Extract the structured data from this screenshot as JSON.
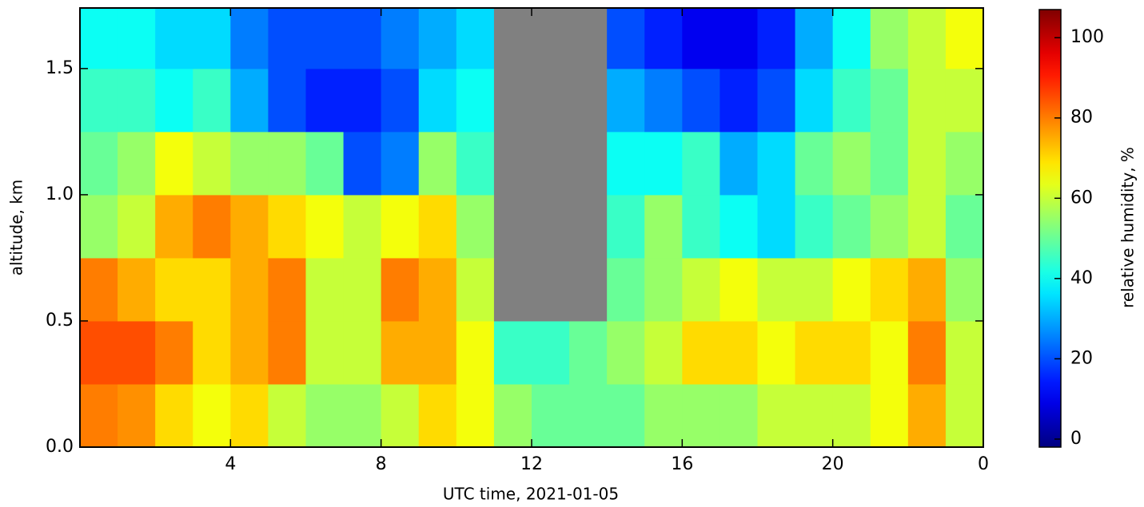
{
  "chart_data": {
    "type": "heatmap",
    "xlabel": "UTC time,  2021-01-05",
    "ylabel": "altitude, km",
    "colorbar_label": "relative humidity, %",
    "colormap": "jet",
    "missing_color": "#808080",
    "x": [
      0,
      1,
      2,
      3,
      4,
      5,
      6,
      7,
      8,
      9,
      10,
      11,
      12,
      13,
      14,
      15,
      16,
      17,
      18,
      19,
      20,
      21,
      22,
      23,
      24
    ],
    "y": [
      0,
      0.25,
      0.5,
      0.75,
      1.0,
      1.25,
      1.5,
      1.74
    ],
    "z": [
      [
        80,
        78,
        70,
        65,
        70,
        60,
        55,
        55,
        60,
        70,
        65,
        55,
        50,
        50,
        50,
        55,
        55,
        55,
        60,
        60,
        60,
        65,
        75,
        60
      ],
      [
        85,
        85,
        80,
        70,
        75,
        80,
        60,
        60,
        75,
        75,
        65,
        45,
        45,
        50,
        55,
        60,
        70,
        70,
        65,
        70,
        70,
        65,
        80,
        60
      ],
      [
        80,
        75,
        70,
        70,
        75,
        80,
        60,
        60,
        80,
        75,
        60,
        null,
        null,
        null,
        50,
        55,
        60,
        65,
        60,
        60,
        65,
        70,
        75,
        55
      ],
      [
        55,
        60,
        75,
        80,
        75,
        70,
        65,
        60,
        65,
        70,
        55,
        null,
        null,
        null,
        45,
        55,
        45,
        40,
        35,
        45,
        50,
        55,
        60,
        50
      ],
      [
        50,
        55,
        65,
        60,
        55,
        55,
        50,
        20,
        25,
        55,
        45,
        null,
        null,
        null,
        40,
        40,
        45,
        30,
        35,
        50,
        55,
        50,
        60,
        55
      ],
      [
        45,
        45,
        40,
        45,
        30,
        20,
        15,
        15,
        20,
        35,
        40,
        null,
        null,
        null,
        30,
        25,
        20,
        15,
        20,
        35,
        45,
        50,
        60,
        60
      ],
      [
        40,
        40,
        35,
        35,
        25,
        20,
        20,
        20,
        25,
        30,
        35,
        null,
        null,
        null,
        20,
        15,
        10,
        10,
        15,
        30,
        40,
        55,
        60,
        65
      ]
    ],
    "xlim": [
      0,
      24
    ],
    "xticks": [
      4,
      8,
      12,
      16,
      20,
      {
        "value": 24,
        "label": "0"
      }
    ],
    "ylim": [
      0,
      1.74
    ],
    "yticks": [
      {
        "value": 0,
        "label": "0.0"
      },
      0.5,
      {
        "value": 1,
        "label": "1.0"
      },
      1.5
    ],
    "clim": [
      -2,
      107
    ],
    "cticks": [
      0,
      20,
      40,
      60,
      80,
      100
    ]
  }
}
